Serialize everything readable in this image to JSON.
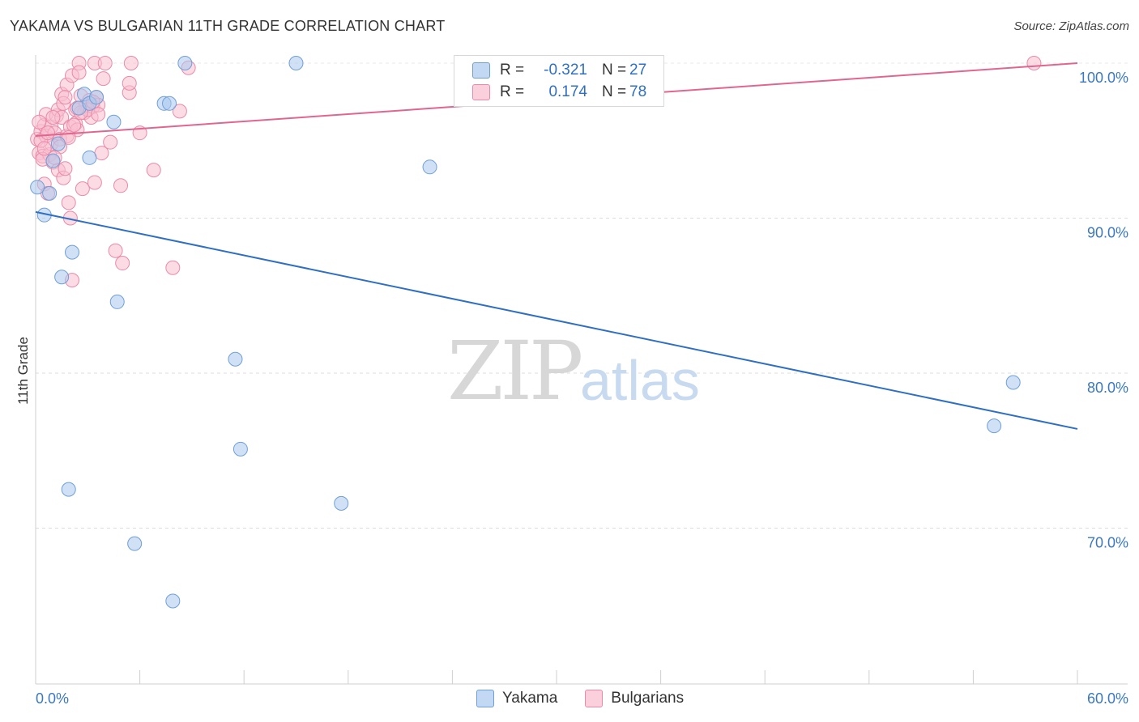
{
  "title": "YAKAMA VS BULGARIAN 11TH GRADE CORRELATION CHART",
  "source": "Source: ZipAtlas.com",
  "watermark": {
    "zip": "ZIP",
    "atlas": "atlas"
  },
  "legend": {
    "rows": [
      {
        "name": "Yakama",
        "r_label": "R =",
        "r_value": "-0.321",
        "n_label": "N =",
        "n_value": "27",
        "color": "#a9c8ef",
        "border": "#6f9fd8"
      },
      {
        "name": "Bulgarians",
        "r_label": "R =",
        "r_value": "0.174",
        "n_label": "N =",
        "n_value": "78",
        "color": "#f7bfd0",
        "border": "#ea8aa8"
      }
    ]
  },
  "chart_data": {
    "type": "scatter",
    "title": "YAKAMA VS BULGARIAN 11TH GRADE CORRELATION CHART",
    "xlabel": "",
    "ylabel": "11th Grade",
    "xlim": [
      0,
      60
    ],
    "ylim": [
      60.5,
      100.5
    ],
    "x_tick_labels": [
      "0.0%",
      "60.0%"
    ],
    "y_ticks": [
      100,
      90,
      80,
      70
    ],
    "y_tick_labels": [
      "100.0%",
      "90.0%",
      "80.0%",
      "70.0%"
    ],
    "grid": true,
    "series": [
      {
        "name": "Yakama",
        "color": "#a9c8ef",
        "edge": "#6f9fd8",
        "line_color": "#2f6fc3",
        "trend": [
          [
            0,
            90.4
          ],
          [
            60,
            76.4
          ]
        ],
        "points": [
          [
            0.1,
            92.0
          ],
          [
            0.5,
            90.2
          ],
          [
            0.8,
            91.6
          ],
          [
            1.0,
            93.7
          ],
          [
            1.3,
            94.8
          ],
          [
            1.5,
            86.2
          ],
          [
            1.9,
            72.5
          ],
          [
            2.1,
            87.8
          ],
          [
            2.5,
            97.1
          ],
          [
            2.8,
            98.0
          ],
          [
            3.1,
            97.4
          ],
          [
            3.5,
            97.8
          ],
          [
            3.1,
            93.9
          ],
          [
            4.5,
            96.2
          ],
          [
            4.7,
            84.6
          ],
          [
            5.7,
            69.0
          ],
          [
            7.4,
            97.4
          ],
          [
            7.7,
            97.4
          ],
          [
            7.9,
            65.3
          ],
          [
            8.6,
            100.0
          ],
          [
            11.5,
            80.9
          ],
          [
            11.8,
            75.1
          ],
          [
            15.0,
            100.0
          ],
          [
            17.6,
            71.6
          ],
          [
            22.7,
            93.3
          ],
          [
            55.2,
            76.6
          ],
          [
            56.3,
            79.4
          ]
        ]
      },
      {
        "name": "Bulgarians",
        "color": "#f7bfd0",
        "edge": "#ea8aa8",
        "line_color": "#e0668f",
        "trend": [
          [
            0,
            95.3
          ],
          [
            60,
            100.0
          ]
        ],
        "points": [
          [
            0.1,
            95.1
          ],
          [
            0.2,
            94.2
          ],
          [
            0.3,
            95.6
          ],
          [
            0.4,
            94.0
          ],
          [
            0.5,
            92.2
          ],
          [
            0.5,
            96.0
          ],
          [
            0.6,
            96.7
          ],
          [
            0.6,
            95.3
          ],
          [
            0.7,
            91.6
          ],
          [
            0.8,
            94.1
          ],
          [
            0.9,
            94.8
          ],
          [
            0.9,
            95.9
          ],
          [
            1.0,
            93.6
          ],
          [
            1.1,
            95.5
          ],
          [
            1.2,
            96.6
          ],
          [
            1.3,
            97.0
          ],
          [
            1.3,
            93.1
          ],
          [
            1.4,
            95.1
          ],
          [
            1.5,
            98.0
          ],
          [
            1.5,
            96.5
          ],
          [
            1.6,
            92.6
          ],
          [
            1.7,
            93.2
          ],
          [
            1.8,
            95.3
          ],
          [
            1.8,
            98.6
          ],
          [
            1.9,
            91.0
          ],
          [
            2.0,
            95.9
          ],
          [
            2.0,
            90.0
          ],
          [
            2.1,
            99.2
          ],
          [
            2.1,
            86.0
          ],
          [
            2.3,
            97.0
          ],
          [
            2.3,
            96.1
          ],
          [
            2.4,
            95.7
          ],
          [
            2.5,
            100.0
          ],
          [
            2.5,
            99.4
          ],
          [
            2.6,
            97.9
          ],
          [
            2.7,
            91.9
          ],
          [
            2.8,
            96.8
          ],
          [
            2.9,
            97.3
          ],
          [
            3.1,
            97.6
          ],
          [
            3.2,
            96.5
          ],
          [
            3.3,
            97.2
          ],
          [
            3.4,
            100.0
          ],
          [
            3.4,
            92.3
          ],
          [
            3.5,
            97.8
          ],
          [
            3.6,
            97.3
          ],
          [
            3.8,
            94.2
          ],
          [
            3.9,
            99.0
          ],
          [
            4.0,
            100.0
          ],
          [
            4.3,
            94.9
          ],
          [
            4.6,
            87.9
          ],
          [
            4.9,
            92.1
          ],
          [
            5.0,
            87.1
          ],
          [
            5.4,
            98.1
          ],
          [
            5.4,
            98.7
          ],
          [
            5.5,
            100.0
          ],
          [
            6.0,
            95.5
          ],
          [
            6.8,
            93.1
          ],
          [
            7.9,
            86.8
          ],
          [
            8.3,
            96.9
          ],
          [
            8.8,
            99.7
          ],
          [
            57.5,
            100.0
          ],
          [
            0.3,
            95.0
          ],
          [
            0.4,
            93.8
          ],
          [
            1.0,
            96.5
          ],
          [
            1.6,
            97.4
          ],
          [
            2.2,
            96.0
          ],
          [
            3.0,
            97.0
          ],
          [
            0.2,
            96.2
          ],
          [
            0.7,
            95.5
          ],
          [
            1.4,
            94.6
          ],
          [
            1.9,
            95.2
          ],
          [
            2.6,
            96.8
          ],
          [
            3.3,
            97.5
          ],
          [
            0.5,
            94.5
          ],
          [
            1.1,
            93.9
          ],
          [
            1.7,
            97.8
          ],
          [
            2.4,
            97.1
          ],
          [
            3.6,
            96.7
          ]
        ]
      }
    ]
  }
}
